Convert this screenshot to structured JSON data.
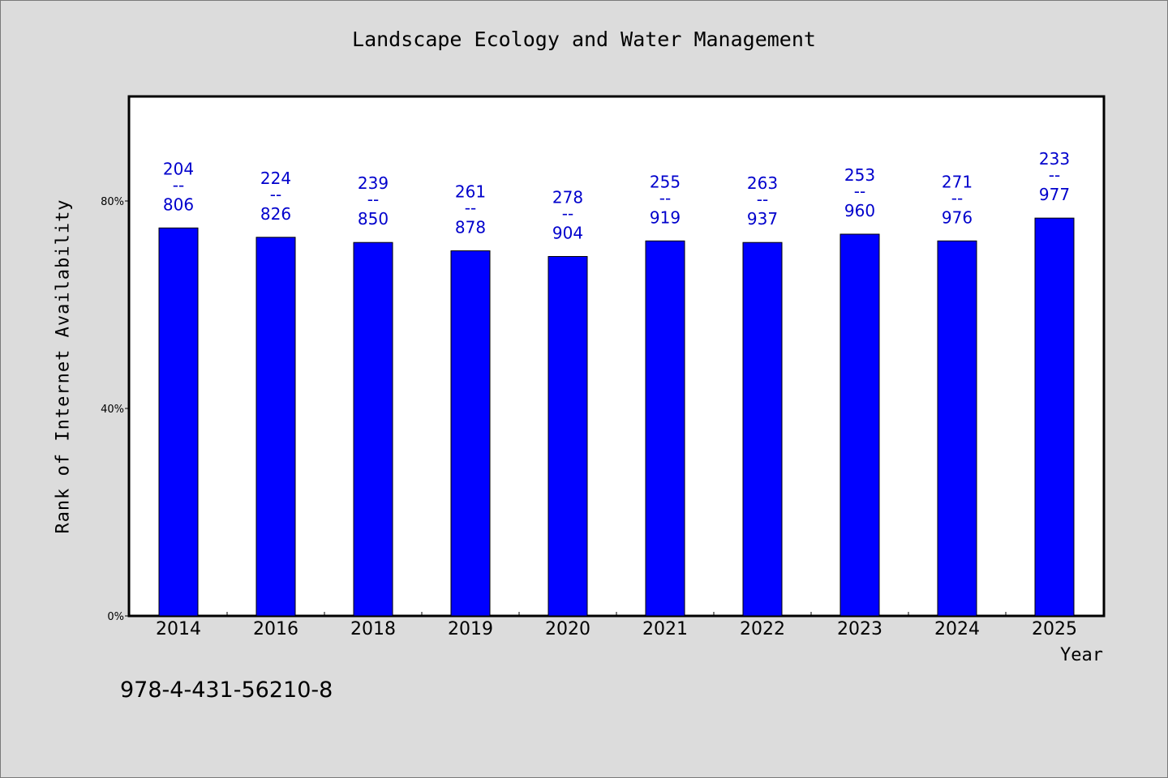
{
  "chart_data": {
    "type": "bar",
    "title": "Landscape Ecology and Water Management",
    "xlabel": "Year",
    "ylabel": "Rank of Internet Availability",
    "ylim": [
      0,
      100
    ],
    "yticks": [
      {
        "value": 0,
        "label": "0%"
      },
      {
        "value": 40,
        "label": "40%"
      },
      {
        "value": 80,
        "label": "80%"
      }
    ],
    "categories": [
      "2014",
      "2016",
      "2018",
      "2019",
      "2020",
      "2021",
      "2022",
      "2023",
      "2024",
      "2025"
    ],
    "values": [
      74.8,
      73.0,
      72.0,
      70.4,
      69.3,
      72.3,
      72.0,
      73.6,
      72.3,
      76.7
    ],
    "data_labels": [
      {
        "top": "204",
        "separator": "--",
        "bottom": "806"
      },
      {
        "top": "224",
        "separator": "--",
        "bottom": "826"
      },
      {
        "top": "239",
        "separator": "--",
        "bottom": "850"
      },
      {
        "top": "261",
        "separator": "--",
        "bottom": "878"
      },
      {
        "top": "278",
        "separator": "--",
        "bottom": "904"
      },
      {
        "top": "255",
        "separator": "--",
        "bottom": "919"
      },
      {
        "top": "263",
        "separator": "--",
        "bottom": "937"
      },
      {
        "top": "253",
        "separator": "--",
        "bottom": "960"
      },
      {
        "top": "271",
        "separator": "--",
        "bottom": "976"
      },
      {
        "top": "233",
        "separator": "--",
        "bottom": "977"
      }
    ],
    "bar_color": "#0000ff",
    "label_color": "#0000cc",
    "grid": false,
    "legend": "none"
  },
  "footer": {
    "isbn": "978-4-431-56210-8"
  }
}
